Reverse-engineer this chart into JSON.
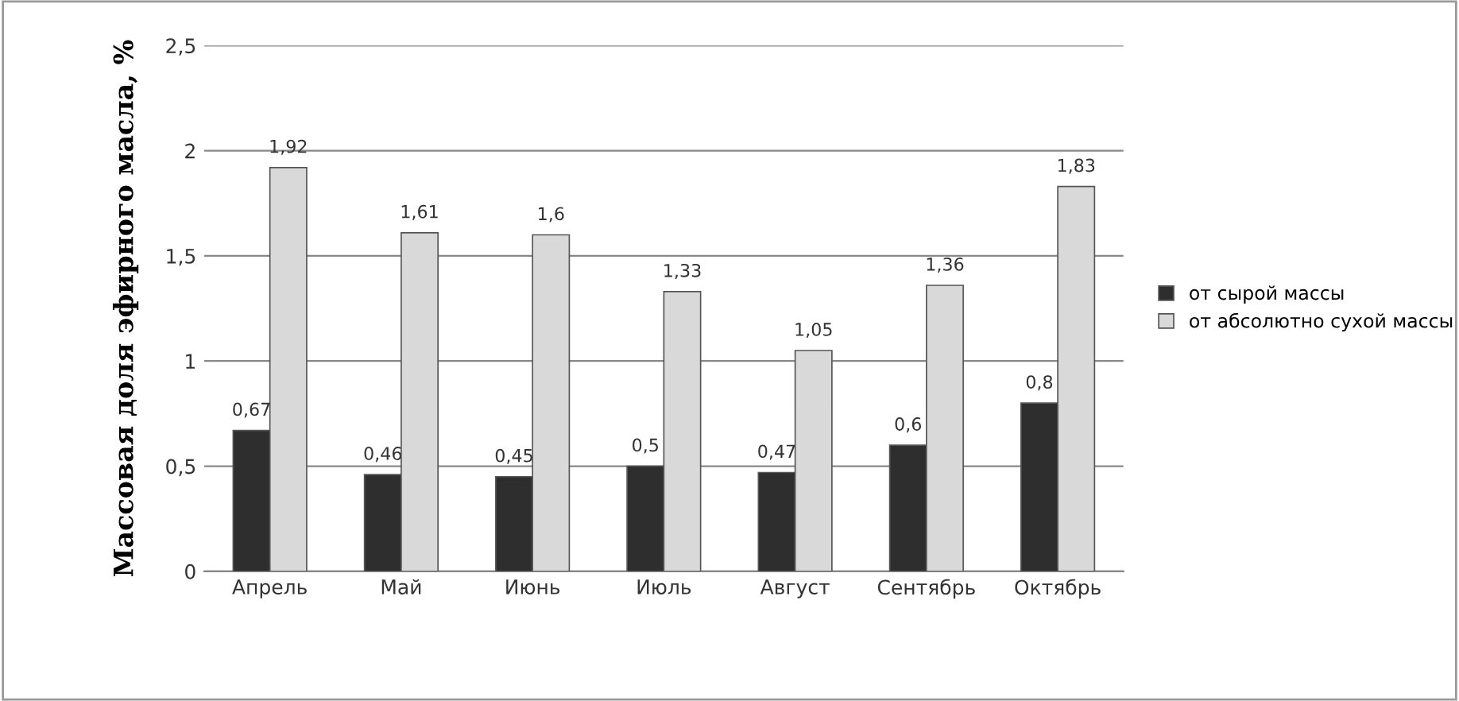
{
  "chart_data": {
    "type": "bar",
    "ylabel": "Массовая доля эфирного масла, %",
    "categories": [
      "Апрель",
      "Май",
      "Июнь",
      "Июль",
      "Август",
      "Сентябрь",
      "Октябрь"
    ],
    "series": [
      {
        "name": "от сырой массы",
        "color": "#2e2e2e",
        "values": [
          0.67,
          0.46,
          0.45,
          0.5,
          0.47,
          0.6,
          0.8
        ],
        "value_labels": [
          "0,67",
          "0,46",
          "0,45",
          "0,5",
          "0,47",
          "0,6",
          "0,8"
        ]
      },
      {
        "name": "от абсолютно сухой массы",
        "color": "#d9d9d9",
        "values": [
          1.92,
          1.61,
          1.6,
          1.33,
          1.05,
          1.36,
          1.83
        ],
        "value_labels": [
          "1,92",
          "1,61",
          "1,6",
          "1,33",
          "1,05",
          "1,36",
          "1,83"
        ]
      }
    ],
    "ylim": [
      0,
      2.5
    ],
    "yticks": [
      0,
      {
        "value": 0.5,
        "label": "0,5"
      },
      1,
      {
        "value": 1.5,
        "label": "1,5"
      },
      2,
      {
        "value": 2.5,
        "label": "2,5"
      }
    ],
    "grid": "y",
    "legend": "right"
  }
}
